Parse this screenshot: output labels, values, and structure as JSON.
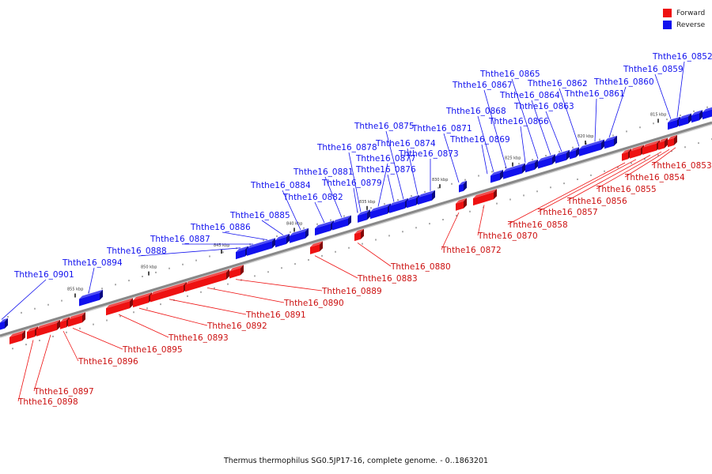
{
  "caption": "Thermus thermophilus SG0.5JP17-16, complete genome. - 0..1863201",
  "legend": [
    {
      "label": "Forward",
      "color": "#ee1111"
    },
    {
      "label": "Reverse",
      "color": "#1111ee"
    }
  ],
  "colors": {
    "forward": "#ee1111",
    "reverse": "#1111ee",
    "backbone": "#888888"
  },
  "ticks": [
    "855 kbp",
    "850 kbp",
    "845 kbp",
    "840 kbp",
    "835 kbp",
    "830 kbp",
    "825 kbp",
    "820 kbp",
    "815 kbp"
  ],
  "reverse_genes": [
    "Ththe16_0852",
    "Ththe16_0859",
    "Ththe16_0860",
    "Ththe16_0861",
    "Ththe16_0862",
    "Ththe16_0863",
    "Ththe16_0864",
    "Ththe16_0865",
    "Ththe16_0866",
    "Ththe16_0867",
    "Ththe16_0868",
    "Ththe16_0869",
    "Ththe16_0871",
    "Ththe16_0873",
    "Ththe16_0874",
    "Ththe16_0875",
    "Ththe16_0876",
    "Ththe16_0877",
    "Ththe16_0878",
    "Ththe16_0879",
    "Ththe16_0881",
    "Ththe16_0882",
    "Ththe16_0884",
    "Ththe16_0885",
    "Ththe16_0886",
    "Ththe16_0887",
    "Ththe16_0888",
    "Ththe16_0894",
    "Ththe16_0901"
  ],
  "forward_genes": [
    "Ththe16_0853",
    "Ththe16_0854",
    "Ththe16_0855",
    "Ththe16_0856",
    "Ththe16_0857",
    "Ththe16_0858",
    "Ththe16_0870",
    "Ththe16_0872",
    "Ththe16_0880",
    "Ththe16_0883",
    "Ththe16_0889",
    "Ththe16_0890",
    "Ththe16_0891",
    "Ththe16_0892",
    "Ththe16_0893",
    "Ththe16_0895",
    "Ththe16_0896",
    "Ththe16_0897",
    "Ththe16_0898"
  ]
}
